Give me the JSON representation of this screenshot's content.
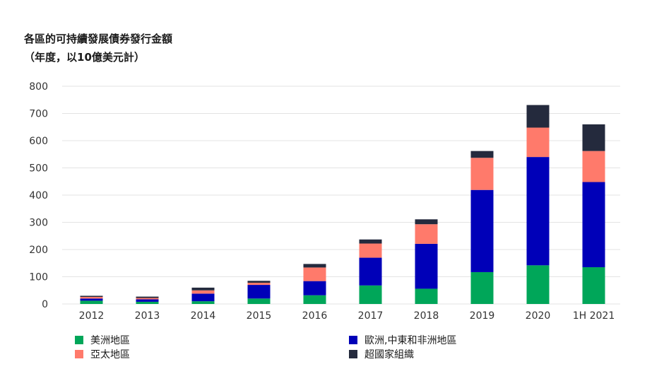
{
  "chart_data": {
    "type": "bar",
    "stacked": true,
    "title": "各區的可持續發展債券發行金額",
    "subtitle": "（年度，以10億美元計）",
    "categories": [
      "2012",
      "2013",
      "2014",
      "2015",
      "2016",
      "2017",
      "2018",
      "2019",
      "2020",
      "1H 2021"
    ],
    "ylim": [
      0,
      800
    ],
    "yticks": [
      0,
      100,
      200,
      300,
      400,
      500,
      600,
      700,
      800
    ],
    "grid": true,
    "legend_position": "bottom",
    "series": [
      {
        "name": "美洲地區",
        "color": "#00a659",
        "values": [
          12,
          8,
          10,
          20,
          32,
          68,
          56,
          117,
          142,
          135
        ]
      },
      {
        "name": "歐洲,中東和非洲地區",
        "color": "#0000b8",
        "values": [
          8,
          9,
          28,
          50,
          52,
          102,
          165,
          302,
          398,
          313
        ]
      },
      {
        "name": "亞太地區",
        "color": "#ff7a6b",
        "values": [
          6,
          5,
          12,
          8,
          50,
          52,
          72,
          118,
          108,
          114
        ]
      },
      {
        "name": "超國家組織",
        "color": "#242a3d",
        "values": [
          4,
          5,
          10,
          7,
          13,
          15,
          18,
          25,
          83,
          98
        ]
      }
    ]
  }
}
